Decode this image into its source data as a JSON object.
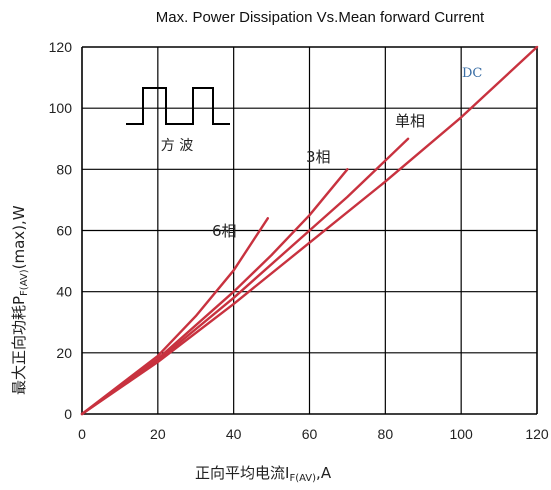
{
  "chart_data": {
    "type": "line",
    "title": "Max. Power Dissipation Vs.Mean forward Current",
    "xlabel": {
      "main": "正向平均电流I",
      "sub": "F(AV)",
      "tail": ",A"
    },
    "ylabel": {
      "main": "最大正向功耗P",
      "sub": "F(AV)",
      "tail": "(max),W"
    },
    "xlim": [
      0,
      120
    ],
    "ylim": [
      0,
      120
    ],
    "xticks": [
      0,
      20,
      40,
      60,
      80,
      100,
      120
    ],
    "yticks": [
      0,
      20,
      40,
      60,
      80,
      100,
      120
    ],
    "grid": true,
    "series": [
      {
        "name": "DC",
        "x": [
          0,
          20,
          40,
          60,
          80,
          100,
          120
        ],
        "y": [
          0,
          17,
          36,
          56,
          76,
          97,
          120
        ]
      },
      {
        "name": "单相",
        "x": [
          0,
          20,
          40,
          60,
          70,
          86
        ],
        "y": [
          0,
          17.5,
          38,
          60,
          71,
          90
        ]
      },
      {
        "name": "3相",
        "x": [
          0,
          20,
          40,
          50,
          60,
          70
        ],
        "y": [
          0,
          18,
          40,
          52,
          65,
          80
        ]
      },
      {
        "name": "6相",
        "x": [
          0,
          20,
          30,
          40,
          49
        ],
        "y": [
          0,
          19,
          32,
          47,
          64
        ]
      }
    ],
    "inset_label": "方 波",
    "colors": {
      "curve": "#c8323f",
      "grid": "#000000"
    }
  }
}
